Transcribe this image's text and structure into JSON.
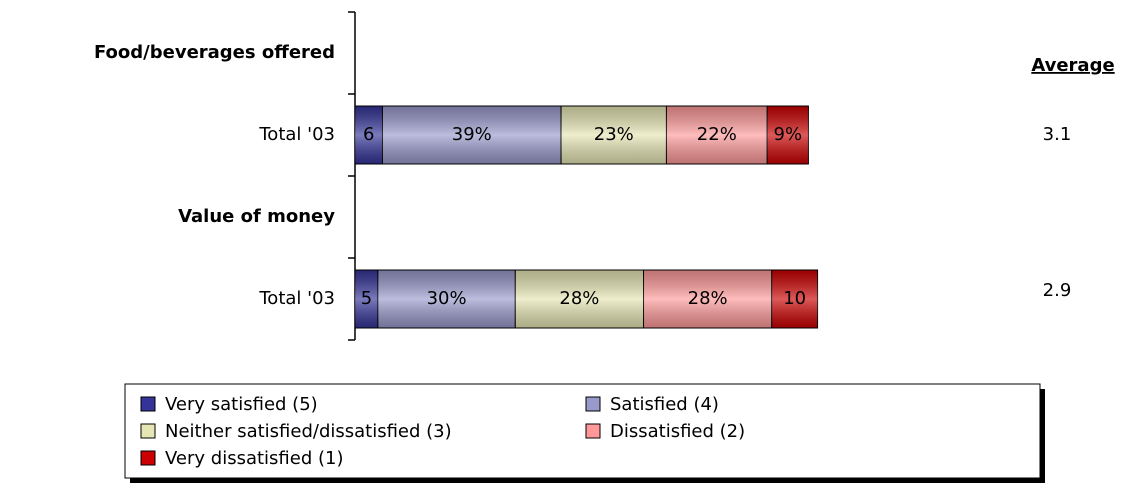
{
  "chart_data": {
    "type": "bar",
    "orientation": "horizontal",
    "stacked": true,
    "groups": [
      "Food/beverages offered",
      "Value of money"
    ],
    "categories": [
      "Total '03",
      "Total '03"
    ],
    "xlim": [
      0,
      100
    ],
    "series": [
      {
        "name": "Very satisfied (5)",
        "color": "#333399",
        "values": [
          6,
          5
        ],
        "value_labels": [
          "6",
          "5"
        ]
      },
      {
        "name": "Satisfied (4)",
        "color": "#9999cc",
        "values": [
          39,
          30
        ],
        "value_labels": [
          "39%",
          "30%"
        ]
      },
      {
        "name": "Neither satisfied/dissatisfied (3)",
        "color": "#e6e6b4",
        "values": [
          23,
          28
        ],
        "value_labels": [
          "23%",
          "28%"
        ]
      },
      {
        "name": "Dissatisfied (2)",
        "color": "#ff9999",
        "values": [
          22,
          28
        ],
        "value_labels": [
          "22%",
          "28%"
        ]
      },
      {
        "name": "Very dissatisfied (1)",
        "color": "#cc0000",
        "values": [
          9,
          10
        ],
        "value_labels": [
          "9%",
          "10"
        ]
      }
    ],
    "averages": {
      "title": "Average",
      "values": [
        3.1,
        2.9
      ]
    },
    "group_color": "#008000"
  }
}
